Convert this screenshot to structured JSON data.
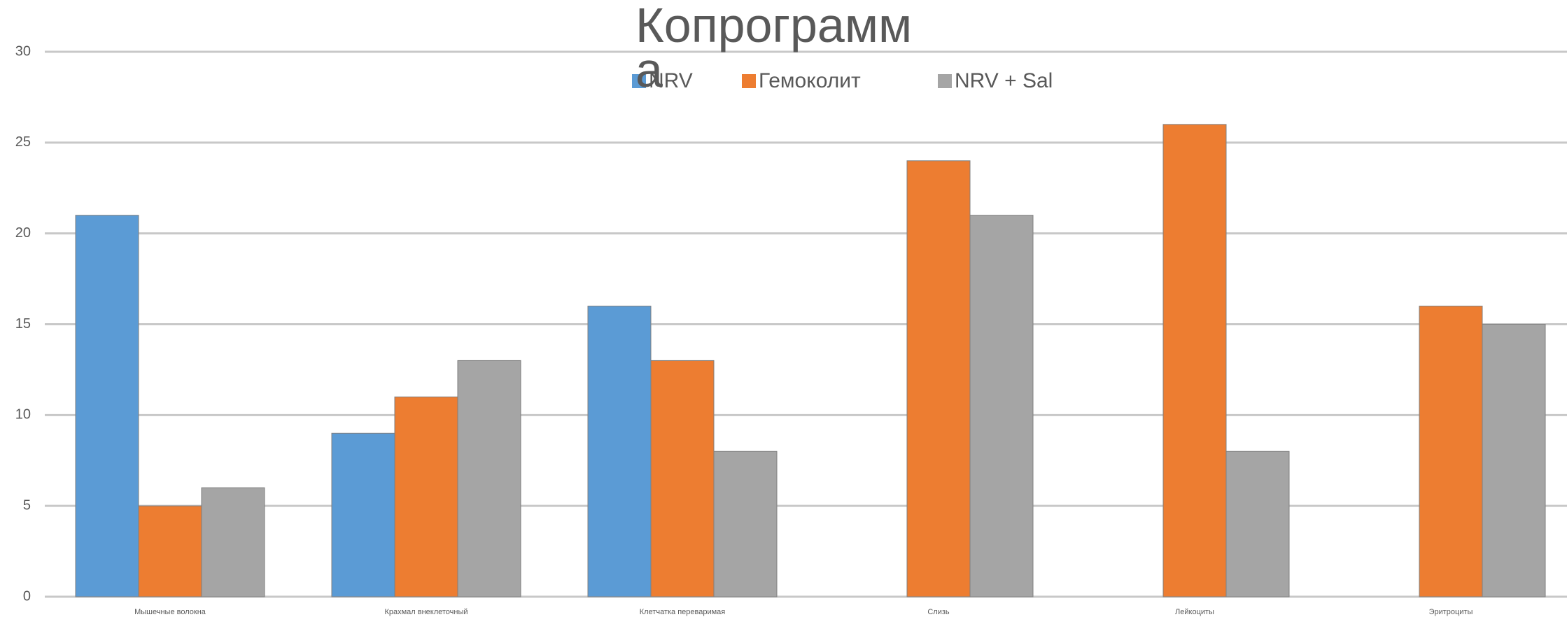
{
  "chart_data": {
    "type": "bar",
    "title": "Копрограмма",
    "categories": [
      "Мышечные волокна",
      "Крахмал внеклеточный",
      "Клетчатка переваримая",
      "Слизь",
      "Лейкоциты",
      "Эритроциты"
    ],
    "series": [
      {
        "name": "NRV",
        "color": "#5b9bd5",
        "values": [
          21,
          9,
          16,
          0,
          0,
          0
        ]
      },
      {
        "name": "Гемоколит",
        "color": "#ed7d31",
        "values": [
          5,
          11,
          13,
          24,
          26,
          16
        ]
      },
      {
        "name": "NRV + Sal",
        "color": "#a5a5a5",
        "values": [
          6,
          13,
          8,
          21,
          8,
          15
        ]
      }
    ],
    "ylim": [
      0,
      30
    ],
    "yticks": [
      0,
      5,
      10,
      15,
      20,
      25,
      30
    ],
    "grid": true,
    "legend": "top"
  }
}
